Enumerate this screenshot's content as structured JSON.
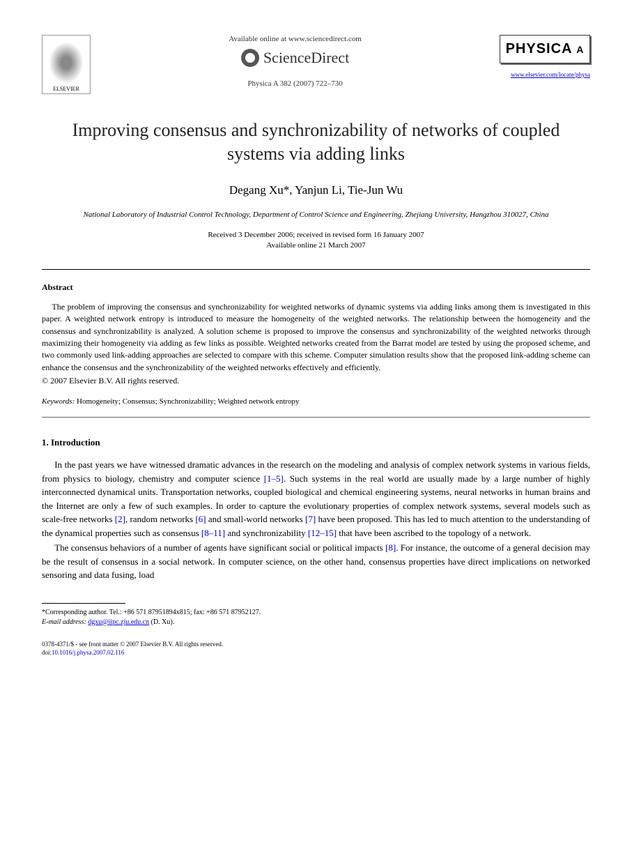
{
  "header": {
    "available_text": "Available online at www.sciencedirect.com",
    "sciencedirect_text": "ScienceDirect",
    "journal_ref": "Physica A 382 (2007) 722–730",
    "elsevier_label": "ELSEVIER",
    "physica_label": "PHYSICA",
    "physica_letter": "A",
    "journal_link": "www.elsevier.com/locate/physa"
  },
  "title": "Improving consensus and synchronizability of networks of coupled systems via adding links",
  "authors": "Degang Xu*, Yanjun Li, Tie-Jun Wu",
  "affiliation": "National Laboratory of Industrial Control Technology, Department of Control Science and Engineering, Zhejiang University, Hangzhou 310027, China",
  "dates": {
    "received": "Received 3 December 2006; received in revised form 16 January 2007",
    "online": "Available online 21 March 2007"
  },
  "abstract": {
    "label": "Abstract",
    "text": "The problem of improving the consensus and synchronizability for weighted networks of dynamic systems via adding links among them is investigated in this paper. A weighted network entropy is introduced to measure the homogeneity of the weighted networks. The relationship between the homogeneity and the consensus and synchronizability is analyzed. A solution scheme is proposed to improve the consensus and synchronizability of the weighted networks through maximizing their homogeneity via adding as few links as possible. Weighted networks created from the Barrat model are tested by using the proposed scheme, and two commonly used link-adding approaches are selected to compare with this scheme. Computer simulation results show that the proposed link-adding scheme can enhance the consensus and the synchronizability of the weighted networks effectively and efficiently.",
    "copyright": "© 2007 Elsevier B.V. All rights reserved."
  },
  "keywords": {
    "label": "Keywords:",
    "text": " Homogeneity; Consensus; Synchronizability; Weighted network entropy"
  },
  "section1": {
    "heading": "1.  Introduction",
    "para1_a": "In the past years we have witnessed dramatic advances in the research on the modeling and analysis of complex network systems in various fields, from physics to biology, chemistry and computer science ",
    "ref1": "[1–5]",
    "para1_b": ". Such systems in the real world are usually made by a large number of highly interconnected dynamical units. Transportation networks, coupled biological and chemical engineering systems, neural networks in human brains and the Internet are only a few of such examples. In order to capture the evolutionary properties of complex network systems, several models such as scale-free networks ",
    "ref2": "[2]",
    "para1_c": ", random networks ",
    "ref3": "[6]",
    "para1_d": " and small-world networks ",
    "ref4": "[7]",
    "para1_e": " have been proposed. This has led to much attention to the understanding of the dynamical properties such as consensus ",
    "ref5": "[8–11]",
    "para1_f": " and synchronizability ",
    "ref6": "[12–15]",
    "para1_g": " that have been ascribed to the topology of a network.",
    "para2_a": "The consensus behaviors of a number of agents have significant social or political impacts ",
    "ref7": "[8]",
    "para2_b": ". For instance, the outcome of a general decision may be the result of consensus in a social network. In computer science, on the other hand, consensus properties have direct implications on networked sensoring and data fusing, load"
  },
  "footnote": {
    "corresponding": "*Corresponding author. Tel.: +86 571 87951894x815; fax: +86 571 87952127.",
    "email_label": "E-mail address:",
    "email": "dgxu@iipc.zju.edu.cn",
    "email_suffix": " (D. Xu)."
  },
  "footer": {
    "issn": "0378-4371/$ - see front matter © 2007 Elsevier B.V. All rights reserved.",
    "doi_label": "doi:",
    "doi": "10.1016/j.physa.2007.02.116"
  }
}
